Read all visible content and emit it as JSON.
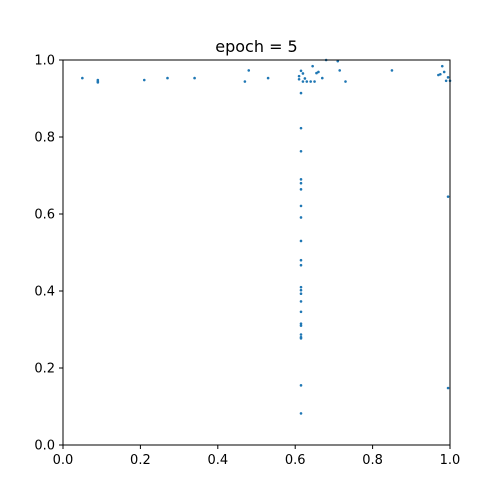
{
  "chart_data": {
    "type": "scatter",
    "title": "epoch = 5",
    "xlabel": "",
    "ylabel": "",
    "xlim": [
      0.0,
      1.0
    ],
    "ylim": [
      0.0,
      1.0
    ],
    "grid": false,
    "marker_color": "#1f77b4",
    "x_ticks": [
      "0.0",
      "0.2",
      "0.4",
      "0.6",
      "0.8",
      "1.0"
    ],
    "y_ticks": [
      "0.0",
      "0.2",
      "0.4",
      "0.6",
      "0.8",
      "1.0"
    ],
    "series": [
      {
        "x": [
          0.05,
          0.09,
          0.09,
          0.09,
          0.21,
          0.27,
          0.34,
          0.47,
          0.48,
          0.53,
          0.61,
          0.61,
          0.615,
          0.62,
          0.62,
          0.625,
          0.63,
          0.64,
          0.645,
          0.65,
          0.655,
          0.66,
          0.67,
          0.68,
          0.71,
          0.715,
          0.73,
          0.85,
          0.97,
          0.975,
          0.98,
          0.985,
          0.99,
          0.995,
          1.0,
          0.995,
          0.995,
          0.615,
          0.615,
          0.615,
          0.615,
          0.615,
          0.615,
          0.615,
          0.615,
          0.615,
          0.615,
          0.615,
          0.615,
          0.615,
          0.615,
          0.615,
          0.615,
          0.615,
          0.615,
          0.615,
          0.615,
          0.615,
          0.615,
          0.615
        ],
        "y": [
          0.953,
          0.948,
          0.944,
          0.942,
          0.948,
          0.953,
          0.953,
          0.944,
          0.973,
          0.953,
          0.958,
          0.95,
          0.972,
          0.965,
          0.944,
          0.952,
          0.944,
          0.944,
          0.984,
          0.944,
          0.966,
          0.969,
          0.953,
          1.0,
          0.997,
          0.973,
          0.944,
          0.973,
          0.961,
          0.963,
          0.984,
          0.969,
          0.946,
          0.955,
          0.946,
          0.645,
          0.148,
          0.914,
          0.823,
          0.763,
          0.69,
          0.68,
          0.664,
          0.621,
          0.591,
          0.53,
          0.48,
          0.467,
          0.41,
          0.402,
          0.393,
          0.373,
          0.346,
          0.315,
          0.31,
          0.287,
          0.28,
          0.277,
          0.155,
          0.082
        ]
      }
    ]
  }
}
